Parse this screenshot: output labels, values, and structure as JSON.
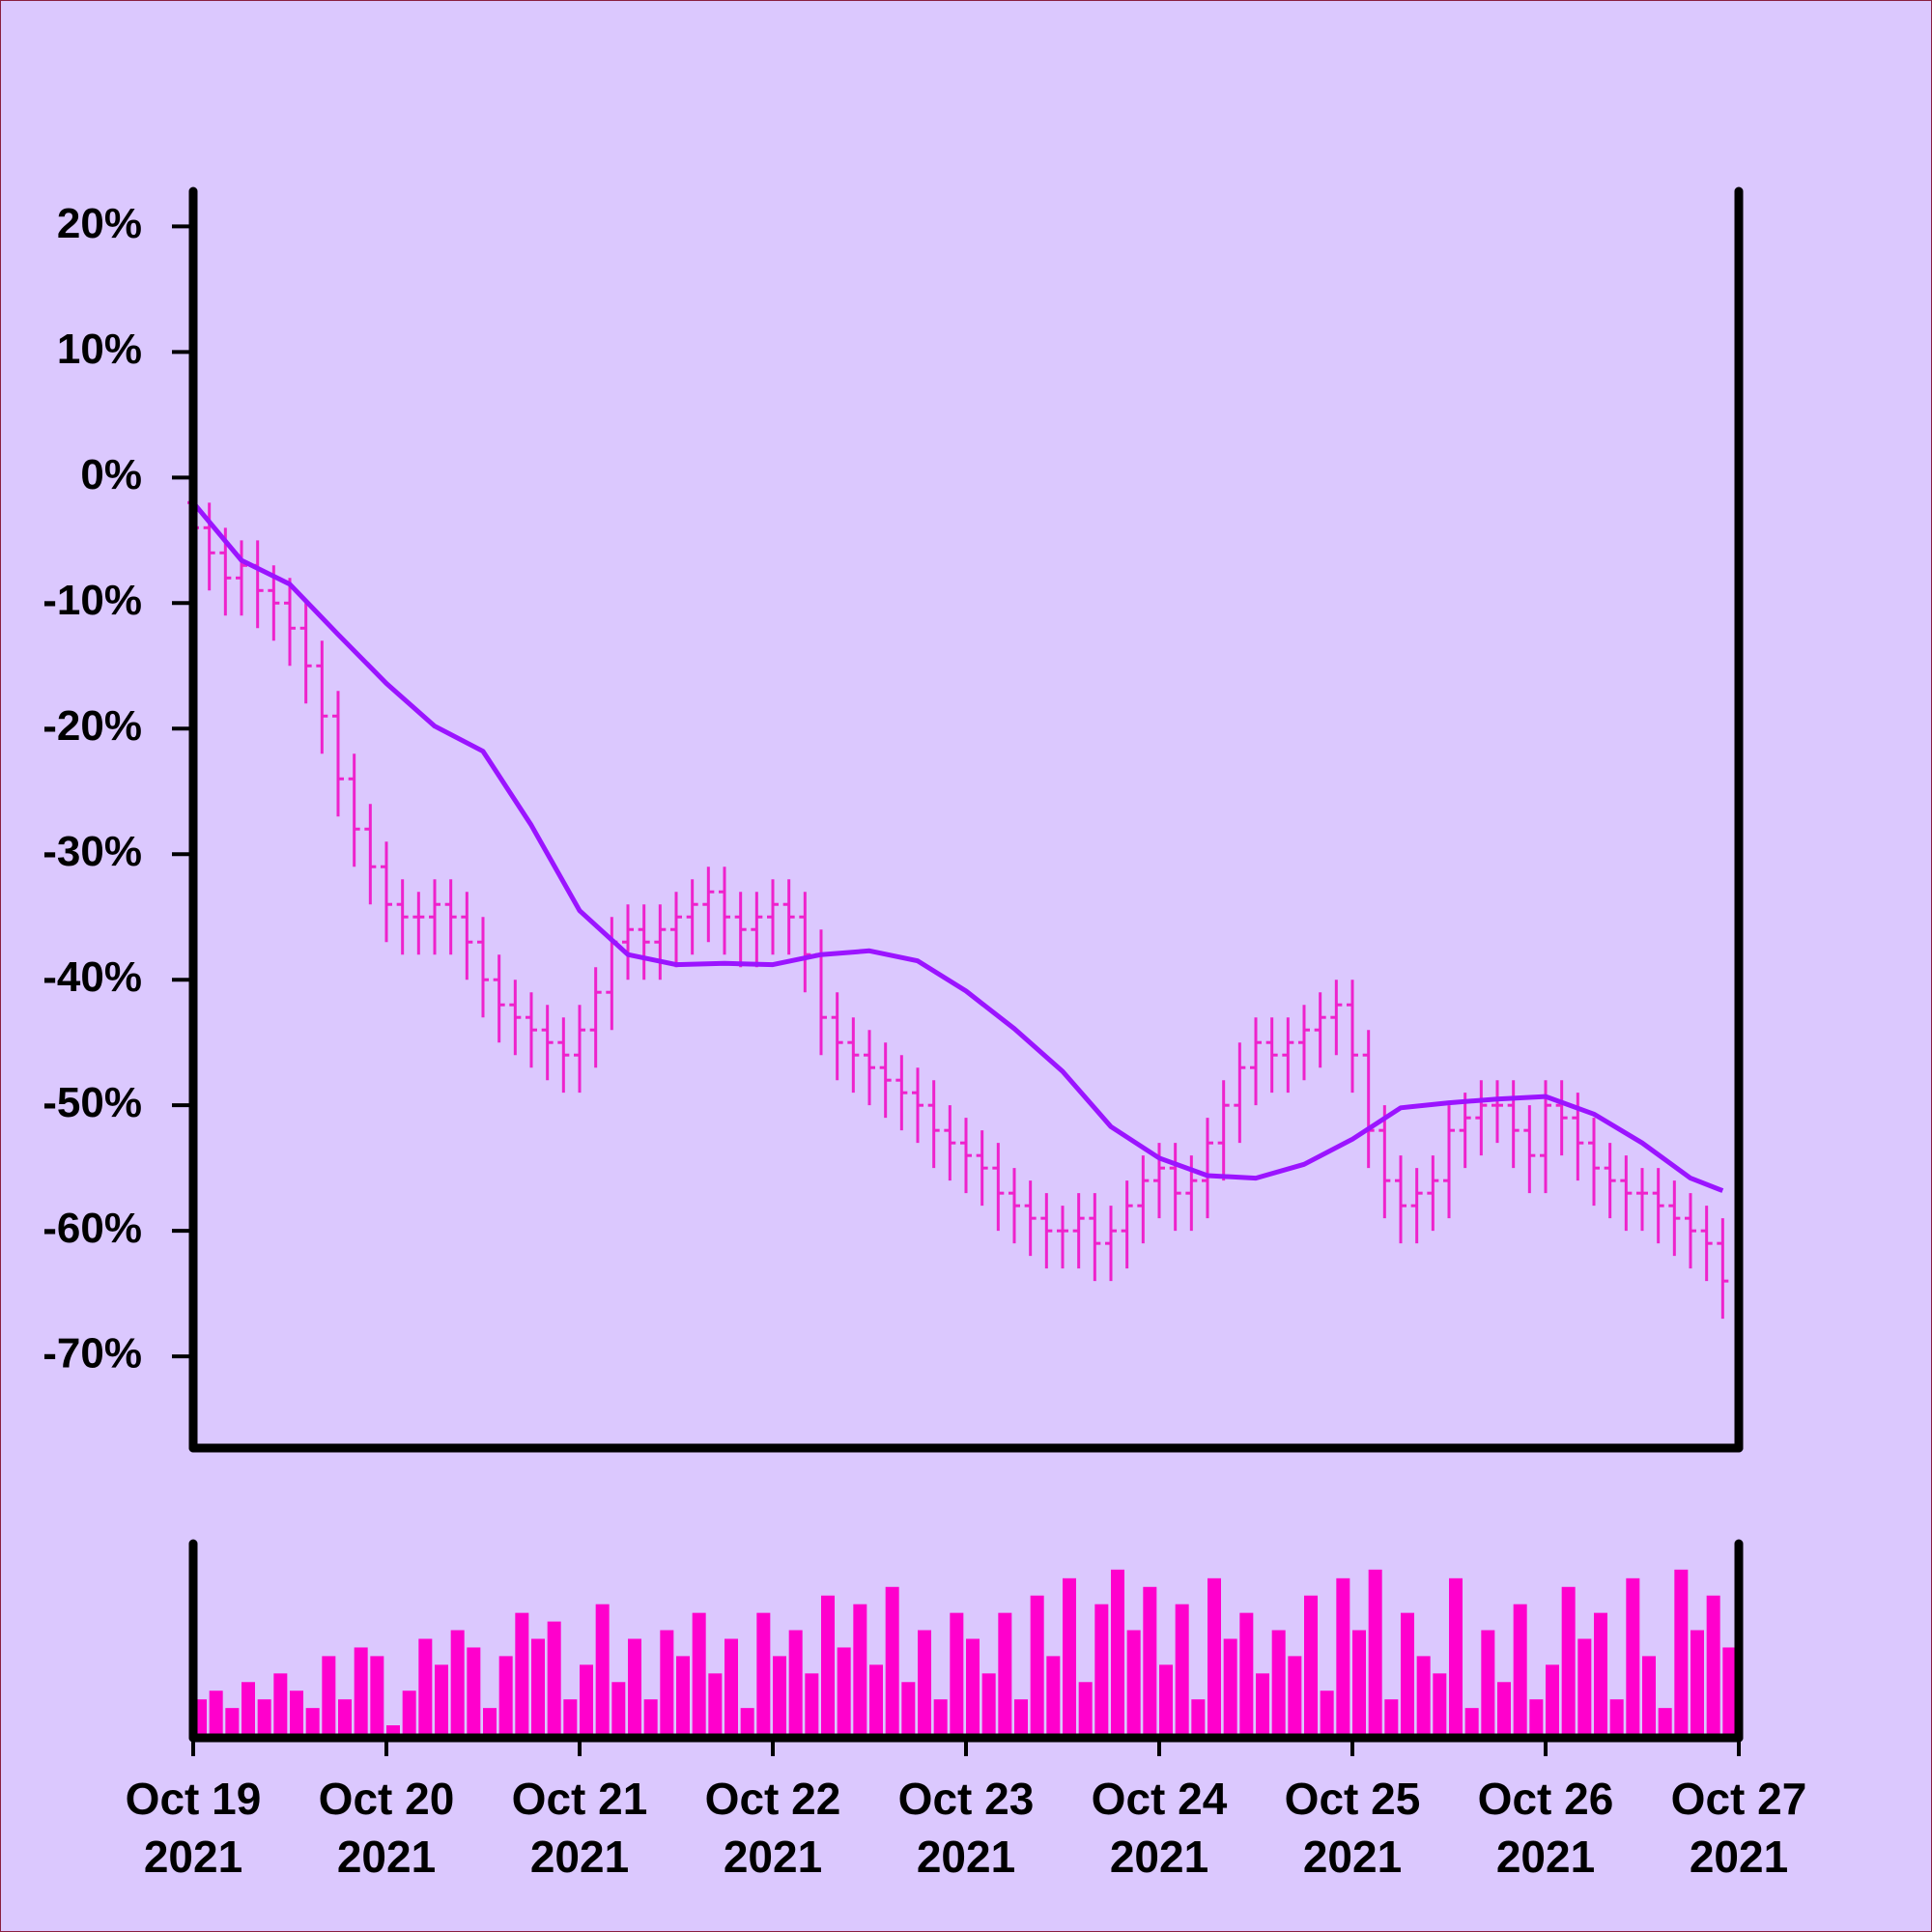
{
  "chart_data": {
    "type": "ohlc",
    "color": "#ee22cc",
    "xlim": [
      "2021-10-19T00:00",
      "2021-10-27T00:00"
    ],
    "xticks": [
      {
        "value": "2021-10-19T00:00",
        "label": "Oct 19",
        "year": "2021"
      },
      {
        "value": "2021-10-20T00:00",
        "label": "Oct 20",
        "year": "2021"
      },
      {
        "value": "2021-10-21T00:00",
        "label": "Oct 21",
        "year": "2021"
      },
      {
        "value": "2021-10-22T00:00",
        "label": "Oct 22",
        "year": "2021"
      },
      {
        "value": "2021-10-23T00:00",
        "label": "Oct 23",
        "year": "2021"
      },
      {
        "value": "2021-10-24T00:00",
        "label": "Oct 24",
        "year": "2021"
      },
      {
        "value": "2021-10-25T00:00",
        "label": "Oct 25",
        "year": "2021"
      },
      {
        "value": "2021-10-26T00:00",
        "label": "Oct 26",
        "year": "2021"
      },
      {
        "value": "2021-10-27T00:00",
        "label": "Oct 27",
        "year": "2021"
      }
    ],
    "ylim": [
      -77.3,
      22.8
    ],
    "yticks": [
      {
        "value": 20,
        "label": "20%"
      },
      {
        "value": 10,
        "label": "10%"
      },
      {
        "value": 0,
        "label": "0%"
      },
      {
        "value": -10,
        "label": "-10%"
      },
      {
        "value": -20,
        "label": "-20%"
      },
      {
        "value": -30,
        "label": "-30%"
      },
      {
        "value": -40,
        "label": "-40%"
      },
      {
        "value": -50,
        "label": "-50%"
      },
      {
        "value": -60,
        "label": "-60%"
      },
      {
        "value": -70,
        "label": "-70%"
      }
    ],
    "x": [
      "2021-10-19T00:00",
      "2021-10-19T02:00",
      "2021-10-19T04:00",
      "2021-10-19T06:00",
      "2021-10-19T08:00",
      "2021-10-19T10:00",
      "2021-10-19T12:00",
      "2021-10-19T14:00",
      "2021-10-19T16:00",
      "2021-10-19T18:00",
      "2021-10-19T20:00",
      "2021-10-19T22:00",
      "2021-10-20T00:00",
      "2021-10-20T02:00",
      "2021-10-20T04:00",
      "2021-10-20T06:00",
      "2021-10-20T08:00",
      "2021-10-20T10:00",
      "2021-10-20T12:00",
      "2021-10-20T14:00",
      "2021-10-20T16:00",
      "2021-10-20T18:00",
      "2021-10-20T20:00",
      "2021-10-20T22:00",
      "2021-10-21T00:00",
      "2021-10-21T02:00",
      "2021-10-21T04:00",
      "2021-10-21T06:00",
      "2021-10-21T08:00",
      "2021-10-21T10:00",
      "2021-10-21T12:00",
      "2021-10-21T14:00",
      "2021-10-21T16:00",
      "2021-10-21T18:00",
      "2021-10-21T20:00",
      "2021-10-21T22:00",
      "2021-10-22T00:00",
      "2021-10-22T02:00",
      "2021-10-22T04:00",
      "2021-10-22T06:00",
      "2021-10-22T08:00",
      "2021-10-22T10:00",
      "2021-10-22T12:00",
      "2021-10-22T14:00",
      "2021-10-22T16:00",
      "2021-10-22T18:00",
      "2021-10-22T20:00",
      "2021-10-22T22:00",
      "2021-10-23T00:00",
      "2021-10-23T02:00",
      "2021-10-23T04:00",
      "2021-10-23T06:00",
      "2021-10-23T08:00",
      "2021-10-23T10:00",
      "2021-10-23T12:00",
      "2021-10-23T14:00",
      "2021-10-23T16:00",
      "2021-10-23T18:00",
      "2021-10-23T20:00",
      "2021-10-23T22:00",
      "2021-10-24T00:00",
      "2021-10-24T02:00",
      "2021-10-24T04:00",
      "2021-10-24T06:00",
      "2021-10-24T08:00",
      "2021-10-24T10:00",
      "2021-10-24T12:00",
      "2021-10-24T14:00",
      "2021-10-24T16:00",
      "2021-10-24T18:00",
      "2021-10-24T20:00",
      "2021-10-24T22:00",
      "2021-10-25T00:00",
      "2021-10-25T02:00",
      "2021-10-25T04:00",
      "2021-10-25T06:00",
      "2021-10-25T08:00",
      "2021-10-25T10:00",
      "2021-10-25T12:00",
      "2021-10-25T14:00",
      "2021-10-25T16:00",
      "2021-10-25T18:00",
      "2021-10-25T20:00",
      "2021-10-25T22:00",
      "2021-10-26T00:00",
      "2021-10-26T02:00",
      "2021-10-26T04:00",
      "2021-10-26T06:00",
      "2021-10-26T08:00",
      "2021-10-26T10:00",
      "2021-10-26T12:00",
      "2021-10-26T14:00",
      "2021-10-26T16:00",
      "2021-10-26T18:00",
      "2021-10-26T20:00",
      "2021-10-26T22:00"
    ],
    "open": [
      -2,
      -4,
      -6,
      -8,
      -7,
      -9,
      -10,
      -12,
      -15,
      -19,
      -24,
      -28,
      -31,
      -34,
      -35,
      -35,
      -34,
      -35,
      -37,
      -40,
      -42,
      -43,
      -44,
      -45,
      -46,
      -44,
      -41,
      -37,
      -36,
      -37,
      -36,
      -35,
      -34,
      -33,
      -35,
      -36,
      -35,
      -34,
      -35,
      -38,
      -43,
      -45,
      -46,
      -47,
      -48,
      -49,
      -50,
      -52,
      -53,
      -54,
      -55,
      -57,
      -58,
      -59,
      -60,
      -60,
      -59,
      -61,
      -60,
      -58,
      -56,
      -55,
      -57,
      -56,
      -53,
      -50,
      -47,
      -45,
      -46,
      -45,
      -44,
      -43,
      -42,
      -46,
      -52,
      -56,
      -58,
      -57,
      -56,
      -52,
      -51,
      -50,
      -50,
      -52,
      -54,
      -50,
      -51,
      -53,
      -55,
      -56,
      -57,
      -57,
      -58,
      -59,
      -60,
      -61
    ],
    "high": [
      0,
      -2,
      -4,
      -5,
      -5,
      -7,
      -8,
      -10,
      -13,
      -17,
      -22,
      -26,
      -29,
      -32,
      -33,
      -32,
      -32,
      -33,
      -35,
      -38,
      -40,
      -41,
      -42,
      -43,
      -42,
      -39,
      -35,
      -34,
      -34,
      -34,
      -33,
      -32,
      -31,
      -31,
      -33,
      -33,
      -32,
      -32,
      -33,
      -36,
      -41,
      -43,
      -44,
      -45,
      -46,
      -47,
      -48,
      -50,
      -51,
      -52,
      -53,
      -55,
      -56,
      -57,
      -58,
      -57,
      -57,
      -58,
      -56,
      -54,
      -53,
      -53,
      -54,
      -51,
      -48,
      -45,
      -43,
      -43,
      -43,
      -42,
      -41,
      -40,
      -40,
      -44,
      -50,
      -54,
      -55,
      -54,
      -50,
      -49,
      -48,
      -48,
      -48,
      -50,
      -48,
      -48,
      -49,
      -51,
      -53,
      -54,
      -55,
      -55,
      -56,
      -57,
      -58,
      -59
    ],
    "low": [
      -7,
      -9,
      -11,
      -11,
      -12,
      -13,
      -15,
      -18,
      -22,
      -27,
      -31,
      -34,
      -37,
      -38,
      -38,
      -38,
      -38,
      -40,
      -43,
      -45,
      -46,
      -47,
      -48,
      -49,
      -49,
      -47,
      -44,
      -40,
      -40,
      -40,
      -39,
      -38,
      -37,
      -38,
      -39,
      -39,
      -38,
      -38,
      -41,
      -46,
      -48,
      -49,
      -50,
      -51,
      -52,
      -53,
      -55,
      -56,
      -57,
      -58,
      -60,
      -61,
      -62,
      -63,
      -63,
      -63,
      -64,
      -64,
      -63,
      -61,
      -59,
      -60,
      -60,
      -59,
      -56,
      -53,
      -50,
      -49,
      -49,
      -48,
      -47,
      -46,
      -49,
      -55,
      -59,
      -61,
      -61,
      -60,
      -59,
      -55,
      -54,
      -53,
      -55,
      -57,
      -57,
      -54,
      -56,
      -58,
      -59,
      -60,
      -60,
      -61,
      -62,
      -63,
      -64,
      -67
    ],
    "close": [
      -4,
      -6,
      -8,
      -7,
      -9,
      -10,
      -12,
      -15,
      -19,
      -24,
      -28,
      -31,
      -34,
      -35,
      -35,
      -34,
      -35,
      -37,
      -40,
      -42,
      -43,
      -44,
      -45,
      -46,
      -44,
      -41,
      -37,
      -36,
      -37,
      -36,
      -35,
      -34,
      -33,
      -35,
      -36,
      -35,
      -34,
      -35,
      -38,
      -43,
      -45,
      -46,
      -47,
      -48,
      -49,
      -50,
      -52,
      -53,
      -54,
      -55,
      -57,
      -58,
      -59,
      -60,
      -60,
      -59,
      -61,
      -60,
      -58,
      -56,
      -55,
      -57,
      -56,
      -53,
      -50,
      -47,
      -45,
      -46,
      -45,
      -44,
      -43,
      -42,
      -46,
      -52,
      -56,
      -58,
      -57,
      -56,
      -52,
      -51,
      -50,
      -50,
      -52,
      -54,
      -50,
      -51,
      -53,
      -55,
      -56,
      -57,
      -57,
      -58,
      -59,
      -60,
      -61,
      -64
    ],
    "overlay": {
      "type": "line",
      "color": "#9b14ff",
      "x": [
        "2021-10-19T00:00",
        "2021-10-19T06:00",
        "2021-10-19T12:00",
        "2021-10-19T18:00",
        "2021-10-20T00:00",
        "2021-10-20T06:00",
        "2021-10-20T12:00",
        "2021-10-20T18:00",
        "2021-10-21T00:00",
        "2021-10-21T06:00",
        "2021-10-21T12:00",
        "2021-10-21T18:00",
        "2021-10-22T00:00",
        "2021-10-22T06:00",
        "2021-10-22T12:00",
        "2021-10-22T18:00",
        "2021-10-23T00:00",
        "2021-10-23T06:00",
        "2021-10-23T12:00",
        "2021-10-23T18:00",
        "2021-10-24T00:00",
        "2021-10-24T06:00",
        "2021-10-24T12:00",
        "2021-10-24T18:00",
        "2021-10-25T00:00",
        "2021-10-25T06:00",
        "2021-10-25T12:00",
        "2021-10-25T18:00",
        "2021-10-26T00:00",
        "2021-10-26T06:00",
        "2021-10-26T12:00",
        "2021-10-26T18:00",
        "2021-10-26T22:00"
      ],
      "values": [
        -2,
        -6.6,
        -8.5,
        -12.5,
        -16.4,
        -19.8,
        -21.8,
        -27.7,
        -34.5,
        -38,
        -38.8,
        -38.7,
        -38.8,
        -38,
        -37.7,
        -38.5,
        -40.9,
        -43.9,
        -47.3,
        -51.7,
        -54.2,
        -55.6,
        -55.8,
        -54.7,
        -52.7,
        -50.2,
        -49.8,
        -49.5,
        -49.3,
        -50.7,
        -53,
        -55.8,
        -56.8
      ]
    },
    "volume": {
      "type": "bar",
      "color": "#ff00cc",
      "ylim": [
        0,
        110
      ],
      "values": [
        20,
        25,
        15,
        30,
        20,
        35,
        25,
        15,
        45,
        20,
        50,
        45,
        5,
        25,
        55,
        40,
        60,
        50,
        15,
        45,
        70,
        55,
        65,
        20,
        40,
        75,
        30,
        55,
        20,
        60,
        45,
        70,
        35,
        55,
        15,
        70,
        45,
        60,
        35,
        80,
        50,
        75,
        40,
        85,
        30,
        60,
        20,
        70,
        55,
        35,
        70,
        20,
        80,
        45,
        90,
        30,
        75,
        95,
        60,
        85,
        40,
        75,
        20,
        90,
        55,
        70,
        35,
        60,
        45,
        80,
        25,
        90,
        60,
        95,
        20,
        70,
        45,
        35,
        90,
        15,
        60,
        30,
        75,
        20,
        40,
        85,
        55,
        70,
        20,
        90,
        45,
        15,
        95,
        60,
        80,
        50
      ]
    }
  }
}
